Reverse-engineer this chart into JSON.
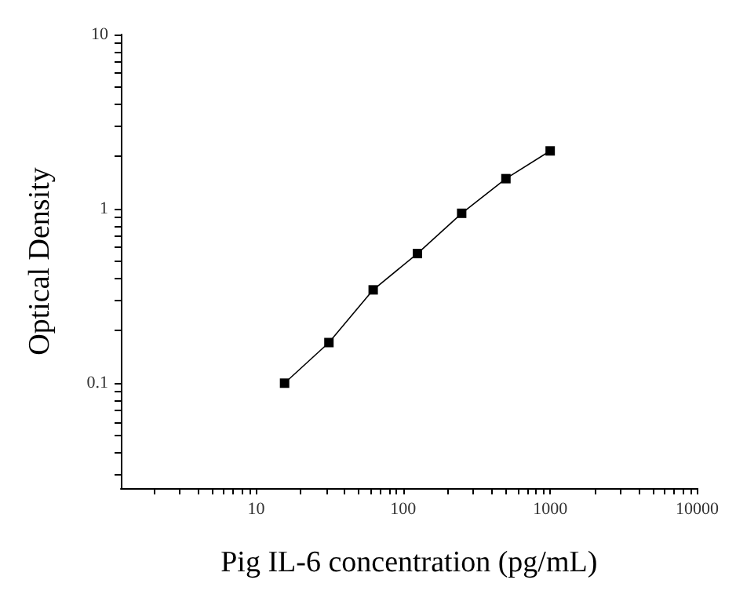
{
  "chart_data": {
    "type": "line",
    "xlabel": "Pig IL-6 concentration (pg/mL)",
    "ylabel": "Optical Density",
    "log": "xy",
    "grid": false,
    "marker": "square",
    "line_style": "solid",
    "x": [
      15.6,
      31.25,
      62.5,
      125,
      250,
      500,
      1000
    ],
    "series": [
      {
        "color": "#000000",
        "values": [
          0.1,
          0.171,
          0.343,
          0.554,
          0.943,
          1.49,
          2.15
        ]
      }
    ],
    "xlim": [
      1.2,
      10000
    ],
    "ylim": [
      0.025,
      10
    ],
    "xticks": [
      {
        "value": 2,
        "label": null
      },
      {
        "value": 3,
        "label": null
      },
      {
        "value": 4,
        "label": null
      },
      {
        "value": 5,
        "label": null
      },
      {
        "value": 6,
        "label": null
      },
      {
        "value": 7,
        "label": null
      },
      {
        "value": 8,
        "label": null
      },
      {
        "value": 9,
        "label": null
      },
      10,
      {
        "value": 20,
        "label": null
      },
      {
        "value": 30,
        "label": null
      },
      {
        "value": 40,
        "label": null
      },
      {
        "value": 50,
        "label": null
      },
      {
        "value": 60,
        "label": null
      },
      {
        "value": 70,
        "label": null
      },
      {
        "value": 80,
        "label": null
      },
      {
        "value": 90,
        "label": null
      },
      100,
      {
        "value": 200,
        "label": null
      },
      {
        "value": 300,
        "label": null
      },
      {
        "value": 400,
        "label": null
      },
      {
        "value": 500,
        "label": null
      },
      {
        "value": 600,
        "label": null
      },
      {
        "value": 700,
        "label": null
      },
      {
        "value": 800,
        "label": null
      },
      {
        "value": 900,
        "label": null
      },
      1000,
      {
        "value": 2000,
        "label": null
      },
      {
        "value": 3000,
        "label": null
      },
      {
        "value": 4000,
        "label": null
      },
      {
        "value": 5000,
        "label": null
      },
      {
        "value": 6000,
        "label": null
      },
      {
        "value": 7000,
        "label": null
      },
      {
        "value": 8000,
        "label": null
      },
      {
        "value": 9000,
        "label": null
      },
      10000
    ],
    "yticks": [
      {
        "value": 0.03,
        "label": null
      },
      {
        "value": 0.04,
        "label": null
      },
      {
        "value": 0.05,
        "label": null
      },
      {
        "value": 0.06,
        "label": null
      },
      {
        "value": 0.07,
        "label": null
      },
      {
        "value": 0.08,
        "label": null
      },
      {
        "value": 0.09,
        "label": null
      },
      0.1,
      {
        "value": 0.2,
        "label": null
      },
      {
        "value": 0.3,
        "label": null
      },
      {
        "value": 0.4,
        "label": null
      },
      {
        "value": 0.5,
        "label": null
      },
      {
        "value": 0.6,
        "label": null
      },
      {
        "value": 0.7,
        "label": null
      },
      {
        "value": 0.8,
        "label": null
      },
      {
        "value": 0.9,
        "label": null
      },
      1,
      {
        "value": 2,
        "label": null
      },
      {
        "value": 3,
        "label": null
      },
      {
        "value": 4,
        "label": null
      },
      {
        "value": 5,
        "label": null
      },
      {
        "value": 6,
        "label": null
      },
      {
        "value": 7,
        "label": null
      },
      {
        "value": 8,
        "label": null
      },
      {
        "value": 9,
        "label": null
      },
      10
    ]
  }
}
